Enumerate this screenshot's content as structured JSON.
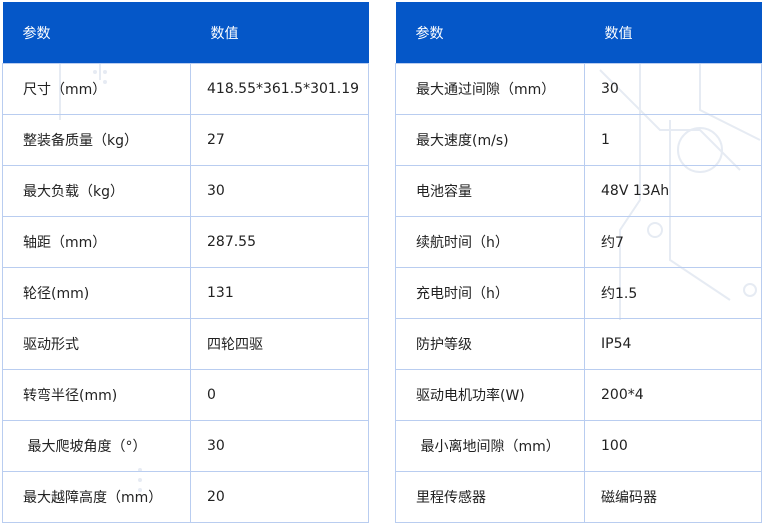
{
  "colors": {
    "header_bg": "#0557c8",
    "header_text": "#ffffff",
    "border": "#b9cdf0"
  },
  "left_table": {
    "headers": [
      "参数",
      "数值"
    ],
    "rows": [
      [
        "尺寸（mm）",
        "418.55*361.5*301.19"
      ],
      [
        "整装备质量（kg）",
        "27"
      ],
      [
        "最大负载（kg）",
        "30"
      ],
      [
        "轴距（mm）",
        "287.55"
      ],
      [
        "轮径(mm)",
        "131"
      ],
      [
        "驱动形式",
        "四轮四驱"
      ],
      [
        "转弯半径(mm)",
        "0"
      ],
      [
        " 最大爬坡角度（°）",
        "30"
      ],
      [
        "最大越障高度（mm）",
        "20"
      ]
    ]
  },
  "right_table": {
    "headers": [
      "参数",
      "数值"
    ],
    "rows": [
      [
        "最大通过间隙（mm）",
        "30"
      ],
      [
        "最大速度(m/s)",
        "1"
      ],
      [
        "电池容量",
        "48V 13Ah"
      ],
      [
        "续航时间（h）",
        "约7"
      ],
      [
        "充电时间（h）",
        "约1.5"
      ],
      [
        "防护等级",
        "IP54"
      ],
      [
        "驱动电机功率(W)",
        "200*4"
      ],
      [
        " 最小离地间隙（mm）",
        "100"
      ],
      [
        "里程传感器",
        "磁编码器"
      ]
    ]
  }
}
